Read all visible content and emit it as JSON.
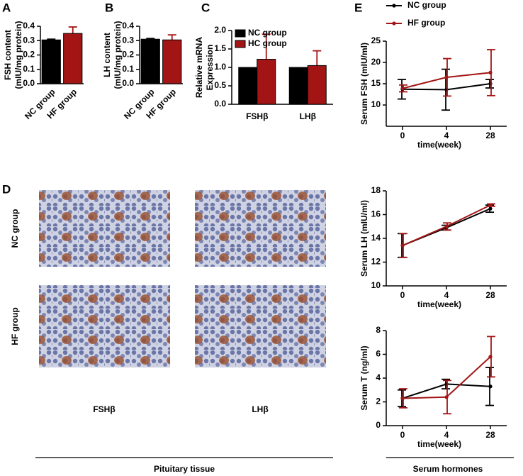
{
  "panel_labels": [
    "A",
    "B",
    "C",
    "D",
    "E"
  ],
  "images": {
    "rows": [
      "NC group",
      "HF group"
    ],
    "columns": [
      "FSHβ",
      "LHβ"
    ]
  },
  "sections": [
    "Pituitary tissue",
    "Serum hormones"
  ],
  "chart_data": [
    {
      "type": "bar",
      "ylabel": [
        "FSH content",
        "(mIU/mg protein)"
      ],
      "categories": [
        "NC group",
        "HF group"
      ],
      "values": [
        0.305,
        0.35
      ],
      "errors": [
        0.005,
        0.045
      ],
      "colors": [
        "#000000",
        "#a31515"
      ],
      "ylim": [
        0,
        0.4
      ],
      "yticks": [
        {
          "value": 0,
          "label": "0.0"
        },
        0.1,
        0.2,
        0.3,
        0.4
      ]
    },
    {
      "type": "bar",
      "ylabel": [
        "LH content",
        "(mIU/mg protein)"
      ],
      "categories": [
        "NC group",
        "HF group"
      ],
      "values": [
        0.31,
        0.305
      ],
      "errors": [
        0.005,
        0.035
      ],
      "colors": [
        "#000000",
        "#a31515"
      ],
      "ylim": [
        0,
        0.4
      ],
      "yticks": [
        {
          "value": 0,
          "label": "0.0"
        },
        0.1,
        0.2,
        0.3,
        0.4
      ]
    },
    {
      "type": "grouped_bar",
      "ylabel": [
        "Relative mRNA",
        "Expression"
      ],
      "categories": [
        "FSHβ",
        "LHβ"
      ],
      "series": [
        {
          "name": "NC group",
          "color": "#000000",
          "values": [
            1.0,
            1.0
          ]
        },
        {
          "name": "HC group",
          "color": "#a31515",
          "values": [
            1.22,
            1.05
          ],
          "errors": [
            0.68,
            0.4
          ]
        }
      ],
      "ylim": [
        0,
        2
      ],
      "yticks": [
        {
          "value": 0,
          "label": "0.0"
        },
        0.5,
        {
          "value": 1,
          "label": "1.0"
        },
        1.5,
        {
          "value": 2,
          "label": "2.0"
        }
      ],
      "legend": true
    },
    {
      "type": "line",
      "xlabel": "time(week)",
      "ylabel": [
        "Serum FSH (mIU/ml)"
      ],
      "categories": [
        "0",
        "4",
        "28"
      ],
      "series": [
        {
          "name": "NC group",
          "color": "#000000",
          "values": [
            13.7,
            13.6,
            15.0
          ],
          "errors": [
            2.3,
            4.8,
            1.0
          ]
        },
        {
          "name": "HF group",
          "color": "#a31515",
          "values": [
            13.9,
            16.5,
            17.6
          ],
          "errors": [
            0.8,
            4.4,
            5.4
          ]
        }
      ],
      "ylim": [
        5,
        25
      ],
      "yticks": [
        10,
        15,
        20,
        25
      ],
      "legend": true
    },
    {
      "type": "line",
      "xlabel": "time(week)",
      "ylabel": [
        "Serum LH (mIU/ml)"
      ],
      "categories": [
        "0",
        "4",
        "28"
      ],
      "series": [
        {
          "color": "#000000",
          "values": [
            13.4,
            14.9,
            16.5
          ],
          "errors": [
            1.0,
            0.2,
            0.3
          ]
        },
        {
          "color": "#a31515",
          "values": [
            13.4,
            15.0,
            16.8
          ],
          "errors": [
            1.0,
            0.3,
            0.1
          ]
        }
      ],
      "ylim": [
        10,
        18
      ],
      "yticks": [
        10,
        12,
        14,
        16,
        18
      ]
    },
    {
      "type": "line",
      "xlabel": "time(week)",
      "ylabel": [
        "Serum T (ng/ml)"
      ],
      "categories": [
        "0",
        "4",
        "28"
      ],
      "series": [
        {
          "color": "#000000",
          "values": [
            2.3,
            3.5,
            3.3
          ],
          "errors": [
            0.7,
            0.4,
            1.6
          ]
        },
        {
          "color": "#a31515",
          "values": [
            2.3,
            2.4,
            5.8
          ],
          "errors": [
            0.8,
            1.4,
            1.7
          ]
        }
      ],
      "ylim": [
        0,
        8
      ],
      "yticks": [
        0,
        2,
        4,
        6,
        8
      ]
    }
  ]
}
